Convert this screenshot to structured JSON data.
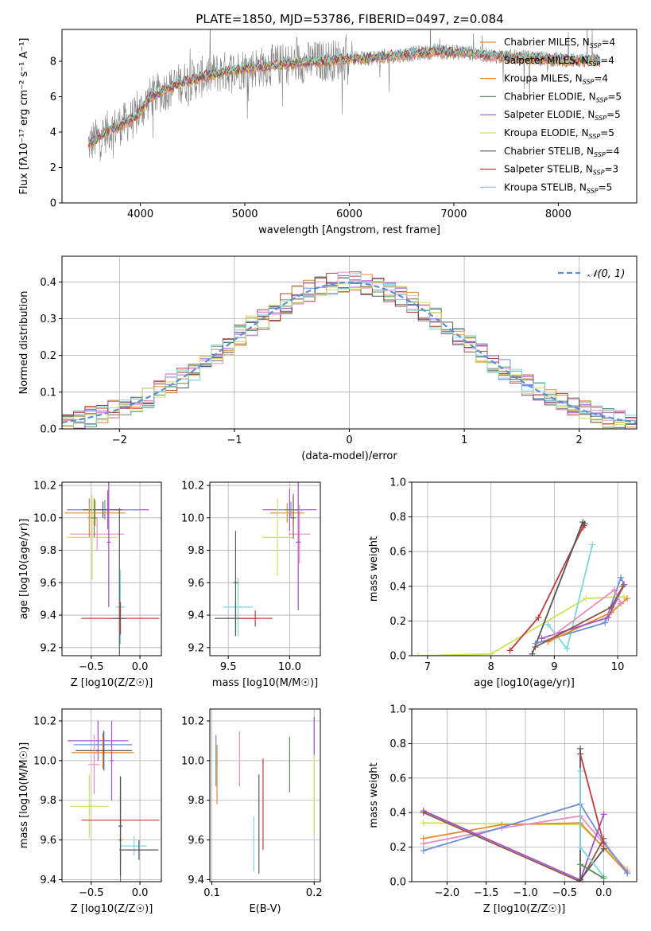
{
  "figure_title": "PLATE=1850, MJD=53786, FIBERID=0497, z=0.084",
  "colors": {
    "grid": "#b0b0b0",
    "spectrum_data": "#808080",
    "series": [
      "#6a8fd6",
      "#e58a2e",
      "#5a8f5a",
      "#c23b3b",
      "#a450c9",
      "#8c5a4a",
      "#e98bc2",
      "#555555",
      "#cfe35a",
      "#7fd6db"
    ]
  },
  "chart_data": [
    {
      "id": "spectrum",
      "type": "line",
      "title": "PLATE=1850, MJD=53786, FIBERID=0497, z=0.084",
      "xlabel": "wavelength [Angstrom, rest frame]",
      "ylabel": "Flux [fλ10⁻¹⁷ erg cm⁻² s⁻¹ A⁻¹]",
      "xlim": [
        3250,
        8750
      ],
      "ylim": [
        0,
        9.8
      ],
      "xticks": [
        4000,
        5000,
        6000,
        7000,
        8000
      ],
      "yticks": [
        0,
        2,
        4,
        6,
        8
      ],
      "data_range": [
        3500,
        8400
      ],
      "continuum": {
        "x": [
          3500,
          3700,
          3950,
          4100,
          4400,
          4700,
          5000,
          5300,
          5600,
          5900,
          6200,
          6500,
          6800,
          7100,
          7400,
          7700,
          8000,
          8400
        ],
        "y": [
          3.3,
          4.1,
          4.8,
          6.0,
          6.8,
          7.3,
          7.6,
          7.8,
          7.95,
          8.1,
          8.2,
          8.35,
          8.55,
          8.5,
          8.3,
          8.2,
          8.1,
          8.0
        ]
      },
      "legend_position": "right",
      "legend": [
        {
          "name": "Chabrier MILES, N_SSP=4",
          "label": "Chabrier MILES, N",
          "sub": "SSP",
          "suffix": "=4"
        },
        {
          "name": "Salpeter MILES, N_SSP=4",
          "label": "Salpeter MILES, N",
          "sub": "SSP",
          "suffix": "=4"
        },
        {
          "name": "Kroupa MILES, N_SSP=4",
          "label": "Kroupa MILES, N",
          "sub": "SSP",
          "suffix": "=4"
        },
        {
          "name": "Chabrier ELODIE, N_SSP=5",
          "label": "Chabrier ELODIE, N",
          "sub": "SSP",
          "suffix": "=5"
        },
        {
          "name": "Salpeter ELODIE, N_SSP=5",
          "label": "Salpeter ELODIE, N",
          "sub": "SSP",
          "suffix": "=5"
        },
        {
          "name": "Kroupa ELODIE, N_SSP=5",
          "label": "Kroupa ELODIE, N",
          "sub": "SSP",
          "suffix": "=5"
        },
        {
          "name": "Chabrier STELIB, N_SSP=4",
          "label": "Chabrier STELIB, N",
          "sub": "SSP",
          "suffix": "=4"
        },
        {
          "name": "Salpeter STELIB, N_SSP=3",
          "label": "Salpeter STELIB, N",
          "sub": "SSP",
          "suffix": "=3"
        },
        {
          "name": "Kroupa STELIB, N_SSP=5",
          "label": "Kroupa STELIB, N",
          "sub": "SSP",
          "suffix": "=5"
        }
      ],
      "legend_colors": [
        "#e58a2e",
        "#e98bc2",
        "#e58a2e",
        "#5a8f5a",
        "#a450c9",
        "#cfe35a",
        "#555555",
        "#c23b3b",
        "#7fd6db"
      ]
    },
    {
      "id": "residuals",
      "type": "bar",
      "xlabel": "(data-model)/error",
      "ylabel": "Normed distribution",
      "xlim": [
        -2.5,
        2.5
      ],
      "ylim": [
        0,
        0.47
      ],
      "xticks": [
        -2,
        -1,
        0,
        1,
        2
      ],
      "yticks": [
        0.0,
        0.1,
        0.2,
        0.3,
        0.4
      ],
      "bin_edges_start": -2.5,
      "bin_width": 0.1,
      "legend": "𝒩(0, 1)",
      "legend_position": "top-right",
      "reference_curve": "normal(0,1)"
    },
    {
      "id": "age-vs-Z",
      "type": "scatter",
      "xlabel": "Z [log10(Z/Z☉)]",
      "ylabel": "age  [log10(age/yr)]",
      "xlim": [
        -0.8,
        0.22
      ],
      "ylim": [
        9.15,
        10.22
      ],
      "xticks": [
        -0.5,
        0.0
      ],
      "yticks": [
        9.2,
        9.4,
        9.6,
        9.8,
        10.0,
        10.2
      ],
      "points": [
        {
          "x": -0.33,
          "y": 10.05,
          "xerr": 0.42,
          "yerr": 0.12,
          "c": 4
        },
        {
          "x": -0.36,
          "y": 10.05,
          "xerr": 0.36,
          "yerr": 0.06,
          "c": 0
        },
        {
          "x": -0.46,
          "y": 10.03,
          "xerr": 0.31,
          "yerr": 0.08,
          "c": 1
        },
        {
          "x": -0.38,
          "y": 10.05,
          "xerr": 0.2,
          "yerr": 0.05,
          "c": 7
        },
        {
          "x": -0.44,
          "y": 9.9,
          "xerr": 0.28,
          "yerr": 0.1,
          "c": 6
        },
        {
          "x": -0.49,
          "y": 9.88,
          "xerr": 0.26,
          "yerr": 0.26,
          "c": 8
        },
        {
          "x": -0.47,
          "y": 10.0,
          "xerr": 0.03,
          "yerr": 0.12,
          "c": 2
        },
        {
          "x": -0.32,
          "y": 9.85,
          "xerr": 0.02,
          "yerr": 0.4,
          "c": 4
        },
        {
          "x": -0.2,
          "y": 9.45,
          "xerr": 0.05,
          "yerr": 0.23,
          "c": 9
        },
        {
          "x": -0.2,
          "y": 9.38,
          "xerr": 0.4,
          "yerr": 0.1,
          "c": 3
        },
        {
          "x": -0.21,
          "y": 9.38,
          "xerr": 0.06,
          "yerr": 0.68,
          "c": 7
        },
        {
          "x": -0.52,
          "y": 10.0,
          "xerr": 0.02,
          "yerr": 0.12,
          "c": 1
        }
      ]
    },
    {
      "id": "age-vs-mass",
      "type": "scatter",
      "xlabel": "mass [log10(M/M☉)]",
      "ylabel": "",
      "xlim": [
        9.35,
        10.25
      ],
      "ylim": [
        9.15,
        10.22
      ],
      "xticks": [
        9.5,
        10.0
      ],
      "yticks": [
        9.2,
        9.4,
        9.6,
        9.8,
        10.0,
        10.2
      ],
      "points": [
        {
          "x": 10.0,
          "y": 10.05,
          "xerr": 0.22,
          "yerr": 0.13,
          "c": 4
        },
        {
          "x": 10.01,
          "y": 10.05,
          "xerr": 0.12,
          "yerr": 0.05,
          "c": 0
        },
        {
          "x": 9.98,
          "y": 10.03,
          "xerr": 0.14,
          "yerr": 0.06,
          "c": 1
        },
        {
          "x": 10.03,
          "y": 10.05,
          "xerr": 0.07,
          "yerr": 0.1,
          "c": 2
        },
        {
          "x": 10.08,
          "y": 9.9,
          "xerr": 0.09,
          "yerr": 0.18,
          "c": 6
        },
        {
          "x": 9.9,
          "y": 9.88,
          "xerr": 0.12,
          "yerr": 0.24,
          "c": 8
        },
        {
          "x": 10.07,
          "y": 9.85,
          "xerr": 0.02,
          "yerr": 0.42,
          "c": 4
        },
        {
          "x": 10.03,
          "y": 10.0,
          "xerr": 0.02,
          "yerr": 0.13,
          "c": 5
        },
        {
          "x": 9.58,
          "y": 9.45,
          "xerr": 0.12,
          "yerr": 0.18,
          "c": 9
        },
        {
          "x": 9.56,
          "y": 9.38,
          "xerr": 0.17,
          "yerr": 0.11,
          "c": 7
        },
        {
          "x": 9.72,
          "y": 9.38,
          "xerr": 0.14,
          "yerr": 0.05,
          "c": 3
        },
        {
          "x": 9.56,
          "y": 9.6,
          "xerr": 0.02,
          "yerr": 0.32,
          "c": 7
        }
      ]
    },
    {
      "id": "weight-vs-age",
      "type": "line",
      "xlabel": "age  [log10(age/yr)]",
      "ylabel": "mass weight",
      "xlim": [
        6.75,
        10.3
      ],
      "ylim": [
        0,
        1.0
      ],
      "xticks": [
        7,
        8,
        9,
        10
      ],
      "yticks": [
        0.0,
        0.2,
        0.4,
        0.6,
        0.8,
        1.0
      ],
      "series": [
        {
          "c": 8,
          "x": [
            6.85,
            8.0,
            9.5,
            10.1
          ],
          "y": [
            0.0,
            0.01,
            0.33,
            0.34
          ]
        },
        {
          "c": 3,
          "x": [
            8.3,
            8.75,
            9.45,
            9.47
          ],
          "y": [
            0.03,
            0.22,
            0.74,
            0.75
          ]
        },
        {
          "c": 7,
          "x": [
            8.65,
            9.45,
            9.48
          ],
          "y": [
            0.01,
            0.77,
            0.76
          ]
        },
        {
          "c": 9,
          "x": [
            8.9,
            9.2,
            9.6
          ],
          "y": [
            0.18,
            0.04,
            0.64
          ]
        },
        {
          "c": 0,
          "x": [
            8.7,
            9.8,
            10.05,
            10.1
          ],
          "y": [
            0.07,
            0.19,
            0.45,
            0.41
          ]
        },
        {
          "c": 1,
          "x": [
            8.9,
            9.9,
            10.15
          ],
          "y": [
            0.08,
            0.25,
            0.33
          ]
        },
        {
          "c": 4,
          "x": [
            8.8,
            9.85,
            10.1
          ],
          "y": [
            0.1,
            0.22,
            0.41
          ]
        },
        {
          "c": 6,
          "x": [
            9.0,
            9.95,
            10.05
          ],
          "y": [
            0.12,
            0.38,
            0.3
          ]
        },
        {
          "c": 5,
          "x": [
            8.7,
            9.9,
            10.08
          ],
          "y": [
            0.05,
            0.28,
            0.4
          ]
        }
      ]
    },
    {
      "id": "mass-vs-Z",
      "type": "scatter",
      "xlabel": "Z [log10(Z/Z☉)]",
      "ylabel": "mass [log10(M/M☉)]",
      "xlim": [
        -0.8,
        0.22
      ],
      "ylim": [
        9.39,
        10.26
      ],
      "xticks": [
        -0.5,
        0.0
      ],
      "yticks": [
        9.4,
        9.6,
        9.8,
        10.0,
        10.2
      ],
      "points": [
        {
          "x": -0.43,
          "y": 10.1,
          "xerr": 0.31,
          "yerr": 0.1,
          "c": 4
        },
        {
          "x": -0.38,
          "y": 10.08,
          "xerr": 0.3,
          "yerr": 0.06,
          "c": 0
        },
        {
          "x": -0.38,
          "y": 10.04,
          "xerr": 0.32,
          "yerr": 0.08,
          "c": 1
        },
        {
          "x": -0.37,
          "y": 10.05,
          "xerr": 0.29,
          "yerr": 0.1,
          "c": 7
        },
        {
          "x": -0.47,
          "y": 9.98,
          "xerr": 0.06,
          "yerr": 0.15,
          "c": 6
        },
        {
          "x": -0.52,
          "y": 9.77,
          "xerr": 0.2,
          "yerr": 0.16,
          "c": 8
        },
        {
          "x": -0.29,
          "y": 10.0,
          "xerr": 0.02,
          "yerr": 0.2,
          "c": 4
        },
        {
          "x": -0.2,
          "y": 9.7,
          "xerr": 0.4,
          "yerr": 0.22,
          "c": 3
        },
        {
          "x": -0.2,
          "y": 9.6,
          "xerr": 0.02,
          "yerr": 0.32,
          "c": 2
        },
        {
          "x": -0.06,
          "y": 9.57,
          "xerr": 0.13,
          "yerr": 0.05,
          "c": 9
        },
        {
          "x": -0.01,
          "y": 9.55,
          "xerr": 0.2,
          "yerr": 0.05,
          "c": 7
        },
        {
          "x": -0.2,
          "y": 9.67,
          "xerr": 0.02,
          "yerr": 0.25,
          "c": 7
        }
      ]
    },
    {
      "id": "mass-vs-EBV",
      "type": "scatter",
      "xlabel": "E(B-V)",
      "ylabel": "",
      "xlim": [
        0.098,
        0.206
      ],
      "ylim": [
        9.39,
        10.26
      ],
      "xticks": [
        0.1,
        0.2
      ],
      "yticks": [
        9.4,
        9.6,
        9.8,
        10.0,
        10.2
      ],
      "points": [
        {
          "x": 0.104,
          "y": 10.0,
          "yerr": 0.13,
          "c": 0
        },
        {
          "x": 0.105,
          "y": 9.93,
          "yerr": 0.15,
          "c": 1
        },
        {
          "x": 0.127,
          "y": 10.01,
          "yerr": 0.14,
          "c": 6
        },
        {
          "x": 0.141,
          "y": 9.58,
          "yerr": 0.14,
          "c": 9
        },
        {
          "x": 0.146,
          "y": 9.68,
          "yerr": 0.25,
          "c": 7
        },
        {
          "x": 0.15,
          "y": 9.78,
          "yerr": 0.23,
          "c": 3
        },
        {
          "x": 0.176,
          "y": 9.98,
          "yerr": 0.14,
          "c": 2
        },
        {
          "x": 0.2,
          "y": 10.12,
          "yerr": 0.1,
          "c": 4
        },
        {
          "x": 0.2,
          "y": 9.83,
          "yerr": 0.2,
          "c": 8
        }
      ]
    },
    {
      "id": "weight-vs-Z",
      "type": "line",
      "xlabel": "Z [log10(Z/Z☉)]",
      "ylabel": "mass weight",
      "xlim": [
        -2.45,
        0.42
      ],
      "ylim": [
        0,
        1.0
      ],
      "xticks": [
        -2.0,
        -1.5,
        -1.0,
        -0.5,
        0.0
      ],
      "yticks": [
        0.0,
        0.2,
        0.4,
        0.6,
        0.8,
        1.0
      ],
      "series": [
        {
          "c": 8,
          "x": [
            -2.3,
            -0.3,
            0.3
          ],
          "y": [
            0.34,
            0.33,
            0.07
          ]
        },
        {
          "c": 1,
          "x": [
            -2.3,
            -1.3,
            -0.3,
            0.3
          ],
          "y": [
            0.25,
            0.33,
            0.34,
            0.05
          ]
        },
        {
          "c": 6,
          "x": [
            -2.3,
            -1.3,
            -0.3,
            0.3
          ],
          "y": [
            0.22,
            0.31,
            0.38,
            0.06
          ]
        },
        {
          "c": 0,
          "x": [
            -2.3,
            -0.3,
            0.0,
            0.3
          ],
          "y": [
            0.18,
            0.45,
            0.23,
            0.05
          ]
        },
        {
          "c": 4,
          "x": [
            -2.3,
            -0.3,
            0.0
          ],
          "y": [
            0.41,
            0.01,
            0.39
          ]
        },
        {
          "c": 5,
          "x": [
            -2.3,
            -0.3,
            0.0
          ],
          "y": [
            0.4,
            0.0,
            0.25
          ]
        },
        {
          "c": 3,
          "x": [
            -0.3,
            0.0
          ],
          "y": [
            0.74,
            0.22
          ]
        },
        {
          "c": 7,
          "x": [
            -0.3,
            -0.3,
            0.0
          ],
          "y": [
            0.77,
            0.01,
            0.19
          ]
        },
        {
          "c": 9,
          "x": [
            -0.3,
            -0.3,
            0.0
          ],
          "y": [
            0.64,
            0.2,
            0.03
          ]
        },
        {
          "c": 2,
          "x": [
            -0.3,
            0.0
          ],
          "y": [
            0.1,
            0.02
          ]
        }
      ]
    }
  ]
}
